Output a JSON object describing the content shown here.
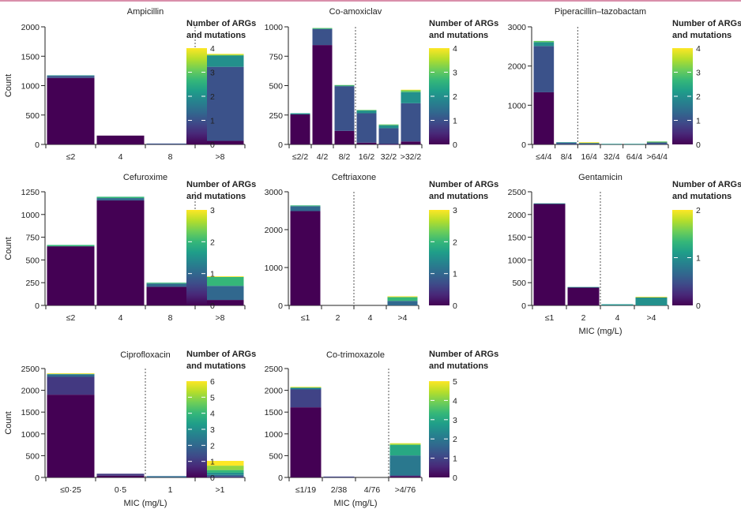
{
  "figure": {
    "colormap": "viridis",
    "colormap_stops": [
      "#440154",
      "#482878",
      "#3e4a89",
      "#31688e",
      "#26828e",
      "#1f9e89",
      "#35b779",
      "#6ece58",
      "#b5de2b",
      "#fde725"
    ],
    "threshold_line_color": "#555555",
    "accent_line_color": "#d98fab"
  },
  "chart_data": [
    {
      "type": "bar",
      "stacked": true,
      "title": "Ampicillin",
      "xlabel": "",
      "ylabel": "Count",
      "categories": [
        "≤2",
        "4",
        "8",
        ">8"
      ],
      "ylim": [
        0,
        2000
      ],
      "yticks": [
        0,
        500,
        1000,
        1500,
        2000
      ],
      "breakpoint_after_index": 2,
      "colorbar": {
        "title_lines": [
          "Number of ARGs",
          "and mutations"
        ],
        "max": 4,
        "ticks": [
          0,
          1,
          2,
          3,
          4
        ]
      },
      "series": [
        {
          "name": "0",
          "values": [
            1130,
            150,
            0,
            60
          ]
        },
        {
          "name": "1",
          "values": [
            35,
            0,
            15,
            1260
          ]
        },
        {
          "name": "2",
          "values": [
            10,
            0,
            0,
            190
          ]
        },
        {
          "name": "3",
          "values": [
            0,
            0,
            0,
            15
          ]
        },
        {
          "name": "4",
          "values": [
            0,
            0,
            0,
            15
          ]
        }
      ]
    },
    {
      "type": "bar",
      "stacked": true,
      "title": "Co-amoxiclav",
      "xlabel": "",
      "ylabel": "",
      "categories": [
        "≤2/2",
        "4/2",
        "8/2",
        "16/2",
        "32/2",
        ">32/2"
      ],
      "ylim": [
        0,
        1000
      ],
      "yticks": [
        0,
        250,
        500,
        750,
        1000
      ],
      "breakpoint_after_index": 2,
      "colorbar": {
        "title_lines": [
          "Number of ARGs",
          "and mutations"
        ],
        "max": 4,
        "ticks": [
          0,
          1,
          2,
          3,
          4
        ]
      },
      "series": [
        {
          "name": "0",
          "values": [
            255,
            845,
            115,
            15,
            3,
            25
          ]
        },
        {
          "name": "1",
          "values": [
            0,
            135,
            380,
            250,
            135,
            325
          ]
        },
        {
          "name": "2",
          "values": [
            10,
            5,
            5,
            25,
            25,
            95
          ]
        },
        {
          "name": "3",
          "values": [
            0,
            5,
            5,
            3,
            7,
            15
          ]
        },
        {
          "name": "4",
          "values": [
            0,
            0,
            0,
            0,
            0,
            5
          ]
        }
      ]
    },
    {
      "type": "bar",
      "stacked": true,
      "title": "Piperacillin–tazobactam",
      "xlabel": "",
      "ylabel": "",
      "categories": [
        "≤4/4",
        "8/4",
        "16/4",
        "32/4",
        "64/4",
        ">64/4"
      ],
      "ylim": [
        0,
        3000
      ],
      "yticks": [
        0,
        1000,
        2000,
        3000
      ],
      "breakpoint_after_index": 1,
      "colorbar": {
        "title_lines": [
          "Number of ARGs",
          "and mutations"
        ],
        "max": 4,
        "ticks": [
          0,
          1,
          2,
          3,
          4
        ]
      },
      "series": [
        {
          "name": "0",
          "values": [
            1330,
            0,
            0,
            0,
            0,
            0
          ]
        },
        {
          "name": "1",
          "values": [
            1180,
            40,
            30,
            0,
            0,
            50
          ]
        },
        {
          "name": "2",
          "values": [
            100,
            15,
            0,
            15,
            15,
            0
          ]
        },
        {
          "name": "3",
          "values": [
            30,
            0,
            15,
            0,
            0,
            25
          ]
        },
        {
          "name": "4",
          "values": [
            0,
            0,
            10,
            0,
            0,
            0
          ]
        }
      ]
    },
    {
      "type": "bar",
      "stacked": true,
      "title": "Cefuroxime",
      "xlabel": "",
      "ylabel": "Count",
      "categories": [
        "≤2",
        "4",
        "8",
        ">8"
      ],
      "ylim": [
        0,
        1250
      ],
      "yticks": [
        0,
        250,
        500,
        750,
        1000,
        1250
      ],
      "breakpoint_after_index": 2,
      "colorbar": {
        "title_lines": [
          "Number of ARGs",
          "and mutations"
        ],
        "max": 3,
        "ticks": [
          0,
          1,
          2,
          3
        ]
      },
      "series": [
        {
          "name": "0",
          "values": [
            650,
            1155,
            205,
            60
          ]
        },
        {
          "name": "1",
          "values": [
            0,
            25,
            35,
            155
          ]
        },
        {
          "name": "2",
          "values": [
            15,
            15,
            10,
            100
          ]
        },
        {
          "name": "3",
          "values": [
            0,
            0,
            0,
            5
          ]
        }
      ]
    },
    {
      "type": "bar",
      "stacked": true,
      "title": "Ceftriaxone",
      "xlabel": "",
      "ylabel": "",
      "categories": [
        "≤1",
        "2",
        "4",
        ">4"
      ],
      "ylim": [
        0,
        3000
      ],
      "yticks": [
        0,
        1000,
        2000,
        3000
      ],
      "breakpoint_after_index": 1,
      "colorbar": {
        "title_lines": [
          "Number of ARGs",
          "and mutations"
        ],
        "max": 3,
        "ticks": [
          0,
          1,
          2,
          3
        ]
      },
      "series": [
        {
          "name": "0",
          "values": [
            2490,
            0,
            0,
            0
          ]
        },
        {
          "name": "1",
          "values": [
            130,
            0,
            0,
            120
          ]
        },
        {
          "name": "2",
          "values": [
            20,
            0,
            0,
            100
          ]
        },
        {
          "name": "3",
          "values": [
            0,
            0,
            0,
            20
          ]
        }
      ]
    },
    {
      "type": "bar",
      "stacked": true,
      "title": "Gentamicin",
      "xlabel": "MIC (mg/L)",
      "ylabel": "",
      "categories": [
        "≤1",
        "2",
        "4",
        ">4"
      ],
      "ylim": [
        0,
        2500
      ],
      "yticks": [
        0,
        500,
        1000,
        1500,
        2000,
        2500
      ],
      "breakpoint_after_index": 1,
      "colorbar": {
        "title_lines": [
          "Number of ARGs",
          "and mutations"
        ],
        "max": 2,
        "ticks": [
          0,
          1,
          2
        ]
      },
      "series": [
        {
          "name": "0",
          "values": [
            2235,
            395,
            0,
            0
          ]
        },
        {
          "name": "1",
          "values": [
            10,
            10,
            25,
            180
          ]
        },
        {
          "name": "2",
          "values": [
            0,
            0,
            0,
            10
          ]
        }
      ]
    },
    {
      "type": "bar",
      "stacked": true,
      "title": "Ciprofloxacin",
      "xlabel": "MIC (mg/L)",
      "ylabel": "Count",
      "categories": [
        "≤0·25",
        "0·5",
        "1",
        ">1"
      ],
      "ylim": [
        0,
        2500
      ],
      "yticks": [
        0,
        500,
        1000,
        1500,
        2000,
        2500
      ],
      "breakpoint_after_index": 1,
      "colorbar": {
        "title_lines": [
          "Number of ARGs",
          "and mutations"
        ],
        "max": 6,
        "ticks": [
          0,
          1,
          2,
          3,
          4,
          5,
          6
        ]
      },
      "series": [
        {
          "name": "0",
          "values": [
            1900,
            40,
            0,
            0
          ]
        },
        {
          "name": "1",
          "values": [
            410,
            45,
            0,
            25
          ]
        },
        {
          "name": "2",
          "values": [
            50,
            0,
            30,
            35
          ]
        },
        {
          "name": "3",
          "values": [
            20,
            0,
            0,
            50
          ]
        },
        {
          "name": "4",
          "values": [
            0,
            0,
            0,
            60
          ]
        },
        {
          "name": "5",
          "values": [
            0,
            0,
            0,
            100
          ]
        },
        {
          "name": "6",
          "values": [
            10,
            0,
            0,
            110
          ]
        }
      ]
    },
    {
      "type": "bar",
      "stacked": true,
      "title": "Co-trimoxazole",
      "xlabel": "MIC (mg/L)",
      "ylabel": "",
      "categories": [
        "≤1/19",
        "2/38",
        "4/76",
        ">4/76"
      ],
      "ylim": [
        0,
        2500
      ],
      "yticks": [
        0,
        500,
        1000,
        1500,
        2000,
        2500
      ],
      "breakpoint_after_index": 2,
      "colorbar": {
        "title_lines": [
          "Number of ARGs",
          "and mutations"
        ],
        "max": 5,
        "ticks": [
          0,
          1,
          2,
          3,
          4,
          5
        ]
      },
      "series": [
        {
          "name": "0",
          "values": [
            1610,
            0,
            0,
            30
          ]
        },
        {
          "name": "1",
          "values": [
            410,
            20,
            0,
            15
          ]
        },
        {
          "name": "2",
          "values": [
            30,
            0,
            0,
            460
          ]
        },
        {
          "name": "3",
          "values": [
            20,
            0,
            0,
            240
          ]
        },
        {
          "name": "4",
          "values": [
            0,
            0,
            0,
            25
          ]
        },
        {
          "name": "5",
          "values": [
            10,
            0,
            0,
            15
          ]
        }
      ]
    }
  ]
}
